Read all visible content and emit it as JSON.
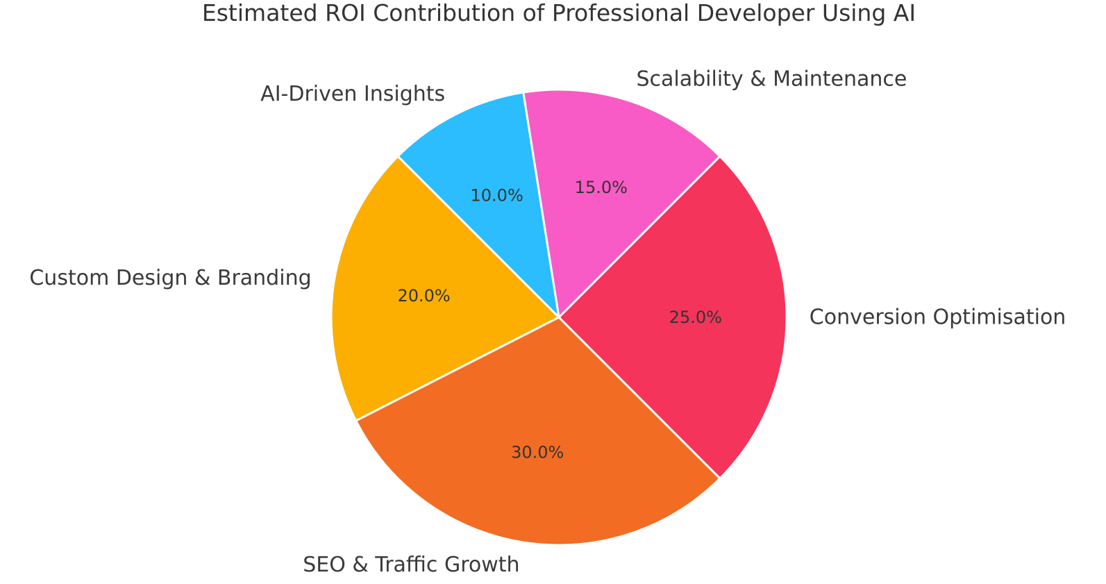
{
  "chart_data": {
    "type": "pie",
    "title": "Estimated ROI Contribution of Professional Developer Using AI",
    "categories": [
      "Conversion Optimisation",
      "Scalability & Maintenance",
      "AI-Driven Insights",
      "Custom Design & Branding",
      "SEO & Traffic Growth"
    ],
    "values": [
      25,
      15,
      10,
      20,
      30
    ],
    "value_labels": [
      "25.0%",
      "15.0%",
      "10.0%",
      "20.0%",
      "30.0%"
    ],
    "colors": [
      "#f4345a",
      "#f85bc5",
      "#2bbdfd",
      "#fcaf00",
      "#f36c23"
    ],
    "legend": "none"
  }
}
